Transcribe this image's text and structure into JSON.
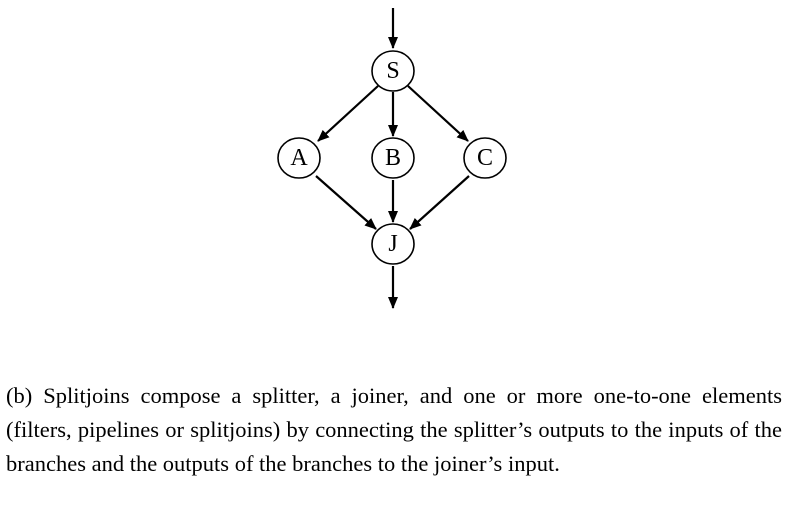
{
  "diagram": {
    "nodes": [
      {
        "id": "S",
        "label": "S"
      },
      {
        "id": "A",
        "label": "A"
      },
      {
        "id": "B",
        "label": "B"
      },
      {
        "id": "C",
        "label": "C"
      },
      {
        "id": "J",
        "label": "J"
      }
    ],
    "edges": [
      {
        "from": "in",
        "to": "S"
      },
      {
        "from": "S",
        "to": "A"
      },
      {
        "from": "S",
        "to": "B"
      },
      {
        "from": "S",
        "to": "C"
      },
      {
        "from": "A",
        "to": "J"
      },
      {
        "from": "B",
        "to": "J"
      },
      {
        "from": "C",
        "to": "J"
      },
      {
        "from": "J",
        "to": "out"
      }
    ]
  },
  "caption": "(b) Splitjoins compose a splitter, a joiner, and one or more one-to-one elements (filters, pipelines or splitjoins) by connecting the splitter’s outputs to the inputs of the branches and the outputs of the branches to the joiner’s input."
}
